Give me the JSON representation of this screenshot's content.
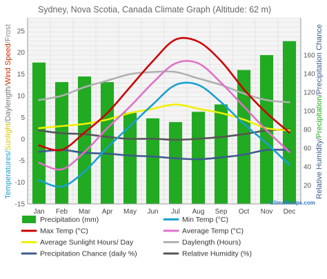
{
  "chart_data": {
    "type": "bar",
    "title": "Sydney, Nova Scotia, Canada Climate Graph (Altitude: 62 m)",
    "watermark": "ClimaTemps.com",
    "categories": [
      "Jan",
      "Feb",
      "Mar",
      "Apr",
      "May",
      "Jun",
      "Jul",
      "Aug",
      "Sep",
      "Oct",
      "Nov",
      "Dec"
    ],
    "ylabel_left": {
      "parts": [
        {
          "text": "Temperatures/",
          "color": "#1a9fd0"
        },
        {
          "text": "Sunlight",
          "color": "#d7c800"
        },
        {
          "text": "/",
          "color": "#888888"
        },
        {
          "text": "Daylength",
          "color": "#777777"
        },
        {
          "text": "/",
          "color": "#888888"
        },
        {
          "text": "Wind Speed",
          "color": "#cc2a00"
        },
        {
          "text": "/",
          "color": "#888888"
        },
        {
          "text": "Frost",
          "color": "#888888"
        }
      ]
    },
    "ylabel_right": {
      "parts": [
        {
          "text": "Relative Humidity/",
          "color": "#3d5a8c"
        },
        {
          "text": "Precipitation",
          "color": "#22aa22"
        },
        {
          "text": "/Precipitation Chance",
          "color": "#3d5a8c"
        }
      ]
    },
    "ylim_left": [
      -15,
      28
    ],
    "left_ticks": [
      -15,
      -10,
      -5,
      0,
      5,
      10,
      15,
      20,
      25
    ],
    "ylim_right": [
      0,
      200
    ],
    "right_ticks": [
      20,
      40,
      60,
      80,
      100,
      120,
      140,
      160
    ],
    "grid": true,
    "series": [
      {
        "name": "Precipitation (mm)",
        "kind": "bar",
        "axis": "right",
        "color": "#22aa22",
        "values": [
          152,
          131,
          137,
          131,
          98,
          92,
          88,
          99,
          107,
          144,
          160,
          175
        ]
      },
      {
        "name": "Min Temp (°C)",
        "kind": "line",
        "axis": "left",
        "color": "#1a9fd0",
        "values": [
          -9.5,
          -11,
          -7.5,
          -2,
          3,
          8,
          12.5,
          12.5,
          8.5,
          3.5,
          -1,
          -6
        ]
      },
      {
        "name": "Max Temp (°C)",
        "kind": "line",
        "axis": "left",
        "color": "#cc0000",
        "values": [
          -1.5,
          -2.5,
          1.5,
          6,
          12,
          18,
          23,
          22.5,
          18,
          11.5,
          6,
          1.5
        ]
      },
      {
        "name": "Average Temp (°C)",
        "kind": "line",
        "axis": "left",
        "color": "#e070c8",
        "values": [
          -5.5,
          -7,
          -3,
          2.5,
          7.5,
          13,
          17.5,
          17.5,
          13,
          7.5,
          2,
          -3
        ]
      },
      {
        "name": "Average Sunlight Hours/ Day",
        "kind": "line",
        "axis": "left",
        "color": "#f0f000",
        "values": [
          2.5,
          3,
          3.5,
          4.5,
          6,
          7,
          8,
          7,
          6,
          4.5,
          2.5,
          2
        ]
      },
      {
        "name": "Daylength (Hours)",
        "kind": "line",
        "axis": "left",
        "color": "#b0b0b0",
        "values": [
          9,
          10,
          12,
          13.5,
          15,
          15.5,
          15.5,
          14,
          12.5,
          10.5,
          9,
          8.5
        ]
      },
      {
        "name": "Precipitation Chance (daily %)",
        "kind": "line",
        "axis": "right",
        "color": "#3d5a8c",
        "values": [
          56,
          58,
          55,
          54,
          52,
          51,
          49,
          48,
          50,
          53,
          58,
          58
        ]
      },
      {
        "name": "Relative Humidity (%)",
        "kind": "line",
        "axis": "right",
        "color": "#555555",
        "values": [
          79,
          76,
          75,
          72,
          70,
          70,
          69,
          70,
          72,
          75,
          79,
          80
        ]
      }
    ]
  }
}
